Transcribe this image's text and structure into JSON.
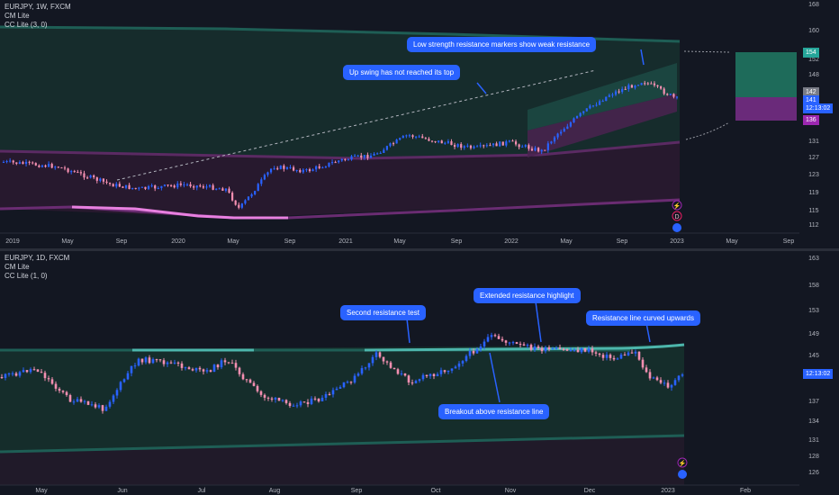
{
  "chart1": {
    "legend": [
      "EURJPY, 1W, FXCM",
      "CM Lite",
      "CC Lite (3, 0)"
    ],
    "price_ticks": [
      "168",
      "160",
      "152",
      "148",
      "141",
      "131",
      "127",
      "123",
      "119",
      "115",
      "112"
    ],
    "time_ticks": [
      "2019",
      "May",
      "Sep",
      "2020",
      "May",
      "Sep",
      "2021",
      "May",
      "Sep",
      "2022",
      "May",
      "Sep",
      "2023",
      "May",
      "Sep"
    ],
    "price_tags": {
      "top": "154",
      "mid1": "142",
      "mid2": "141",
      "timer": "12:13:02",
      "bottom": "136"
    },
    "callouts": {
      "weak_resistance": "Low strength resistance markers show weak resistance",
      "up_swing": "Up swing has not reached its top"
    }
  },
  "chart2": {
    "legend": [
      "EURJPY, 1D, FXCM",
      "CM Lite",
      "CC Lite (1, 0)"
    ],
    "price_ticks": [
      "163",
      "158",
      "153",
      "149",
      "145",
      "137",
      "134",
      "131",
      "128",
      "126"
    ],
    "time_ticks": [
      "May",
      "Jun",
      "Jul",
      "Aug",
      "Sep",
      "Oct",
      "Nov",
      "Dec",
      "2023",
      "Feb"
    ],
    "price_tags": {
      "timer": "12:13:02"
    },
    "callouts": {
      "second_test": "Second resistance test",
      "extended": "Extended resistance highlight",
      "curved": "Resistance line curved upwards",
      "breakout": "Breakout above resistance line"
    }
  },
  "colors": {
    "up": "#2962ff",
    "down": "#f48fb1",
    "teal": "#26a69a",
    "purple": "#9c27b0",
    "bg": "#131722"
  }
}
